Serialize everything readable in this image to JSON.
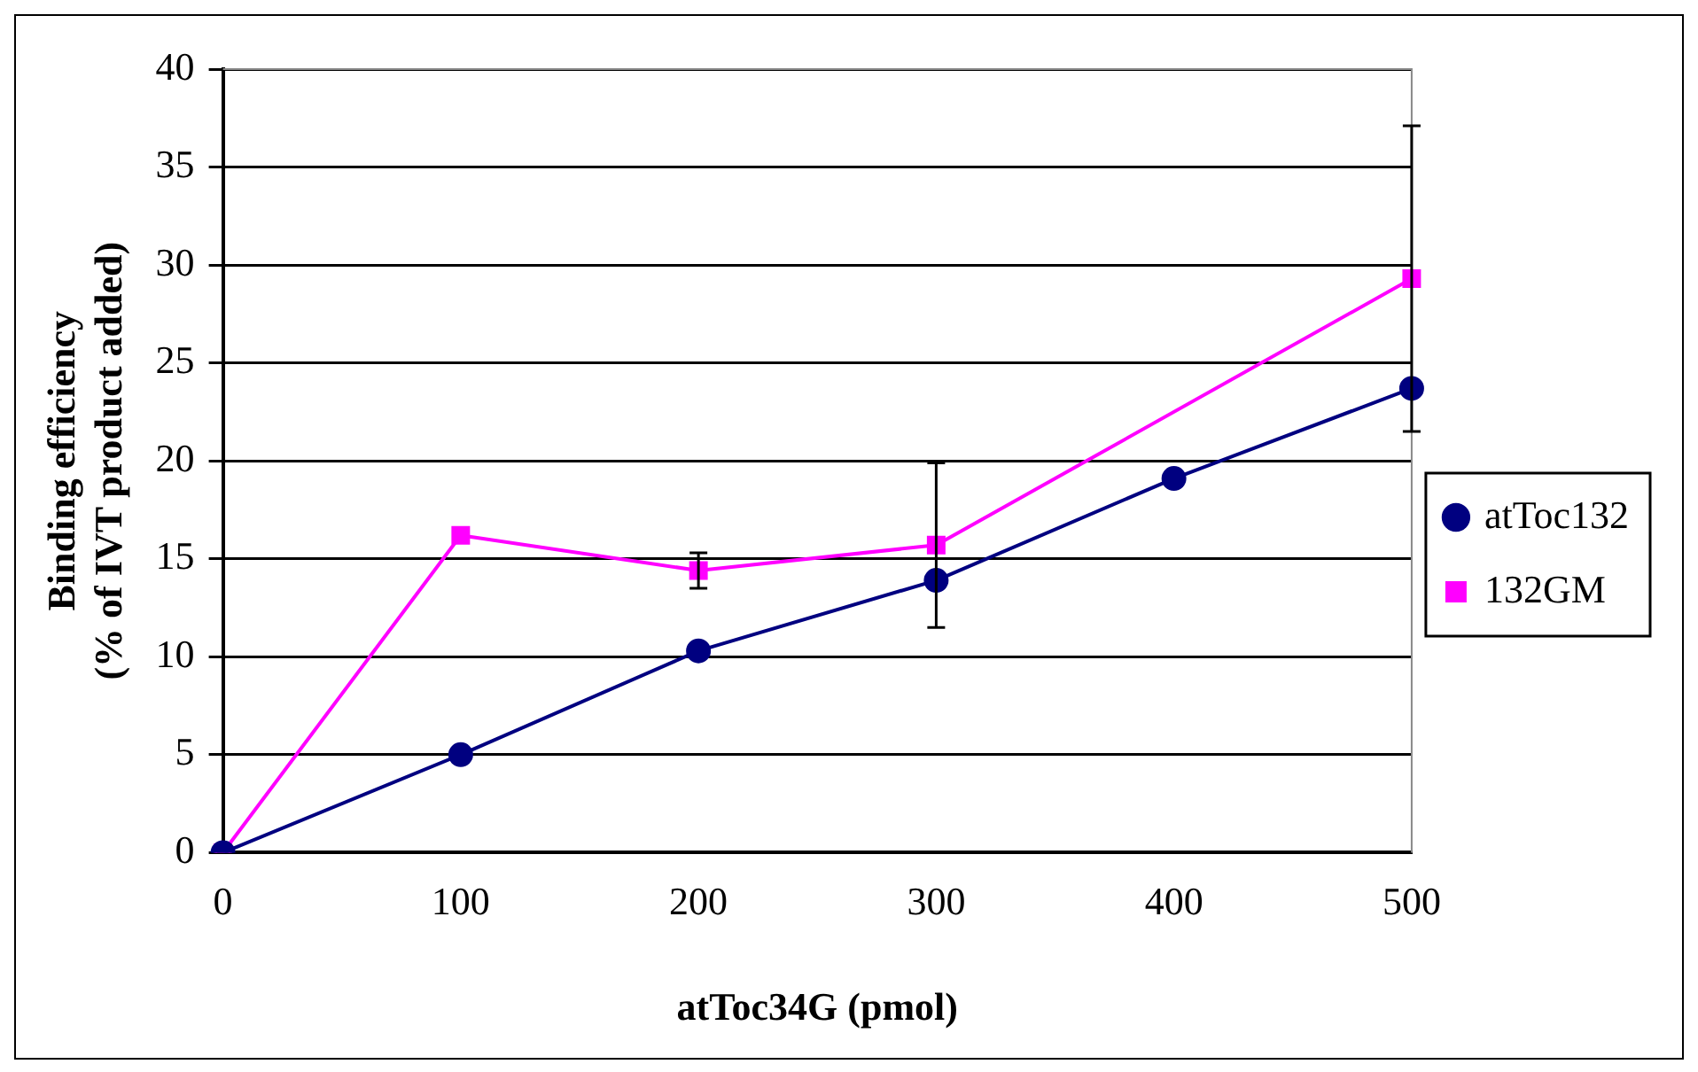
{
  "chart_data": {
    "type": "line",
    "xlabel": "atToc34G (pmol)",
    "ylabel": "Binding efficiency\n(% of IVT product added)",
    "categories": [
      "0",
      "100",
      "200",
      "300",
      "400",
      "500"
    ],
    "series": [
      {
        "name": "atToc132",
        "color": "#000080",
        "marker": "circle",
        "values": [
          0,
          5.0,
          10.3,
          13.9,
          19.1,
          23.7
        ]
      },
      {
        "name": "132GM",
        "color": "#ff00ff",
        "marker": "square",
        "values": [
          0,
          16.2,
          14.4,
          15.7,
          null,
          29.3
        ],
        "errors": [
          null,
          null,
          0.9,
          4.2,
          null,
          7.8
        ]
      }
    ],
    "ylim": [
      0,
      40
    ],
    "yticks": [
      0,
      5,
      10,
      15,
      20,
      25,
      30,
      35,
      40
    ],
    "grid": "y",
    "legend": "right"
  }
}
